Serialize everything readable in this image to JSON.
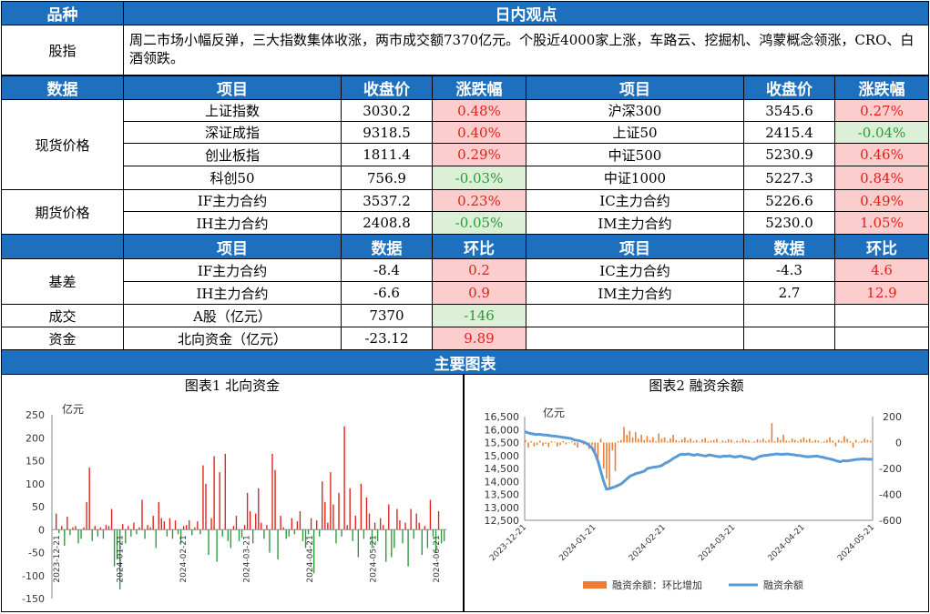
{
  "header": {
    "col1": "品种",
    "title": "日内观点"
  },
  "summary": {
    "label": "股指",
    "text": "周二市场小幅反弹，三大指数集体收涨，两市成交额7370亿元。个股近4000家上涨，车路云、挖掘机、鸿蒙概念领涨，CRO、白酒领跌。"
  },
  "table1": {
    "headers": [
      "数据",
      "项目",
      "收盘价",
      "涨跌幅",
      "项目",
      "收盘价",
      "涨跌幅"
    ],
    "spot_label": "现货价格",
    "futures_label": "期货价格",
    "rows": [
      {
        "n1": "上证指数",
        "v1": "3030.2",
        "c1": "0.48%",
        "n2": "沪深300",
        "v2": "3545.6",
        "c2": "0.27%"
      },
      {
        "n1": "深证成指",
        "v1": "9318.5",
        "c1": "0.40%",
        "n2": "上证50",
        "v2": "2415.4",
        "c2": "-0.04%"
      },
      {
        "n1": "创业板指",
        "v1": "1811.4",
        "c1": "0.29%",
        "n2": "中证500",
        "v2": "5230.9",
        "c2": "0.46%"
      },
      {
        "n1": "科创50",
        "v1": "756.9",
        "c1": "-0.03%",
        "n2": "中证1000",
        "v2": "5227.3",
        "c2": "0.84%"
      },
      {
        "n1": "IF主力合约",
        "v1": "3537.2",
        "c1": "0.23%",
        "n2": "IC主力合约",
        "v2": "5226.6",
        "c2": "0.49%"
      },
      {
        "n1": "IH主力合约",
        "v1": "2408.8",
        "c1": "-0.05%",
        "n2": "IM主力合约",
        "v2": "5230.0",
        "c2": "1.05%"
      }
    ]
  },
  "table2": {
    "headers": [
      "项目",
      "数据",
      "环比",
      "项目",
      "数据",
      "环比"
    ],
    "basis_label": "基差",
    "volume_label": "成交",
    "funds_label": "资金",
    "rows": [
      {
        "n1": "IF主力合约",
        "v1": "-8.4",
        "c1": "0.2",
        "n2": "IC主力合约",
        "v2": "-4.3",
        "c2": "4.6"
      },
      {
        "n1": "IH主力合约",
        "v1": "-6.6",
        "c1": "0.9",
        "n2": "IM主力合约",
        "v2": "2.7",
        "c2": "12.9"
      },
      {
        "n1": "A股（亿元）",
        "v1": "7370",
        "c1": "-146"
      },
      {
        "n1": "北向资金（亿元）",
        "v1": "-23.12",
        "c1": "9.89"
      }
    ]
  },
  "charts_header": "主要图表",
  "colors": {
    "header_blue": "#1e6fbd",
    "up_red": "#e0211a",
    "down_green": "#2a9a3a",
    "line_blue": "#5b9bd5",
    "bar_orange": "#ed7d31"
  },
  "chart_data": [
    {
      "type": "bar",
      "title": "图表1 北向资金",
      "ylabel": "亿元",
      "ylim": [
        -150,
        250
      ],
      "yticks": [
        "250",
        "200",
        "150",
        "100",
        "50",
        "0",
        "-50",
        "-100",
        "-150"
      ],
      "xticks": [
        "2023-12-21",
        "2024-01-21",
        "2024-02-21",
        "2024-03-21",
        "2024-04-21",
        "2024-05-21",
        "2024-06-21"
      ],
      "values": [
        35,
        -8,
        8,
        -35,
        28,
        -12,
        5,
        8,
        -30,
        -20,
        5,
        60,
        135,
        -25,
        8,
        -15,
        5,
        -20,
        10,
        8,
        45,
        -80,
        -65,
        -130,
        12,
        -30,
        8,
        -15,
        15,
        -10,
        5,
        65,
        -20,
        10,
        5,
        30,
        -40,
        60,
        25,
        18,
        -15,
        25,
        -20,
        20,
        -10,
        -30,
        8,
        10,
        20,
        -12,
        5,
        18,
        -10,
        140,
        100,
        -55,
        25,
        160,
        -70,
        125,
        -15,
        165,
        -25,
        -40,
        8,
        30,
        -25,
        -18,
        10,
        80,
        40,
        -30,
        35,
        90,
        15,
        -20,
        10,
        -50,
        165,
        130,
        -65,
        30,
        5,
        -20,
        -15,
        25,
        -10,
        18,
        40,
        -25,
        -40,
        -10,
        25,
        -95,
        20,
        -15,
        105,
        60,
        15,
        125,
        55,
        -30,
        80,
        -15,
        225,
        10,
        90,
        -25,
        30,
        -60,
        100,
        -20,
        70,
        35,
        -40,
        15,
        -25,
        25,
        10,
        -70,
        55,
        -60,
        -40,
        45,
        20,
        -30,
        15,
        -80,
        45,
        -20,
        35,
        15,
        -55,
        8,
        -40,
        65,
        -15,
        -50,
        40,
        -30,
        -25
      ]
    },
    {
      "type": "line",
      "title": "图表2 融资余额",
      "ylabel": "亿元",
      "y_left_lim": [
        12500,
        16500
      ],
      "y_left_ticks": [
        "16,500",
        "16,000",
        "15,500",
        "15,000",
        "14,500",
        "14,000",
        "13,500",
        "13,000",
        "12,500"
      ],
      "y_right_lim": [
        -600,
        200
      ],
      "y_right_ticks": [
        "200",
        "0",
        "-200",
        "-400",
        "-600"
      ],
      "xticks": [
        "2023-12-21",
        "2024-01-21",
        "2024-02-21",
        "2024-03-21",
        "2024-04-21",
        "2024-05-21"
      ],
      "series": [
        {
          "name": "融资余额：环比增加",
          "axis": "right",
          "values": [
            20,
            -40,
            10,
            -30,
            -20,
            15,
            -25,
            -10,
            -35,
            10,
            5,
            -30,
            -20,
            10,
            -15,
            -5,
            8,
            -20,
            -40,
            10,
            -15,
            5,
            -50,
            -20,
            -80,
            -120,
            30,
            -200,
            -280,
            -350,
            -60,
            -220,
            10,
            20,
            120,
            60,
            90,
            40,
            80,
            30,
            60,
            20,
            50,
            20,
            40,
            10,
            70,
            30,
            40,
            10,
            30,
            60,
            20,
            10,
            25,
            40,
            15,
            30,
            10,
            20,
            5,
            25,
            35,
            10,
            15,
            20,
            30,
            5,
            15,
            10,
            25,
            20,
            5,
            15,
            10,
            30,
            20,
            15,
            5,
            10,
            25,
            15,
            30,
            10,
            20,
            150,
            10,
            40,
            20,
            60,
            15,
            10,
            30,
            20,
            10,
            25,
            40,
            20,
            30,
            10,
            20,
            15,
            5,
            10,
            20,
            40,
            15,
            -30,
            20,
            10,
            50,
            30,
            10,
            -40,
            20,
            5,
            10,
            30,
            20,
            15
          ]
        },
        {
          "name": "融资余额",
          "axis": "left",
          "values": [
            15920,
            15880,
            15850,
            15830,
            15810,
            15820,
            15800,
            15790,
            15780,
            15760,
            15750,
            15740,
            15720,
            15700,
            15690,
            15670,
            15650,
            15600,
            15580,
            15560,
            15520,
            15480,
            15400,
            15300,
            15100,
            14800,
            14400,
            14000,
            13700,
            13720,
            13760,
            13800,
            13850,
            13900,
            14000,
            14100,
            14200,
            14250,
            14300,
            14330,
            14360,
            14400,
            14500,
            14520,
            14550,
            14560,
            14580,
            14620,
            14700,
            14750,
            14820,
            14900,
            14960,
            15030,
            15050,
            15040,
            15060,
            15030,
            15010,
            15040,
            15020,
            15000,
            14980,
            15020,
            15010,
            14980,
            14960,
            14950,
            14980,
            14970,
            14990,
            14960,
            14940,
            14960,
            14980,
            14940,
            14920,
            14900,
            14850,
            14880,
            14950,
            14980,
            15000,
            15010,
            15030,
            15040,
            15060,
            15050,
            15040,
            15050,
            15060,
            15040,
            15030,
            15010,
            15000,
            14980,
            14960,
            14950,
            14960,
            14970,
            14980,
            14950,
            14930,
            14900,
            14880,
            14850,
            14820,
            14780,
            14760,
            14800,
            14790,
            14800,
            14820,
            14840,
            14850,
            14860,
            14870,
            14860,
            14850,
            14860
          ]
        }
      ]
    }
  ]
}
